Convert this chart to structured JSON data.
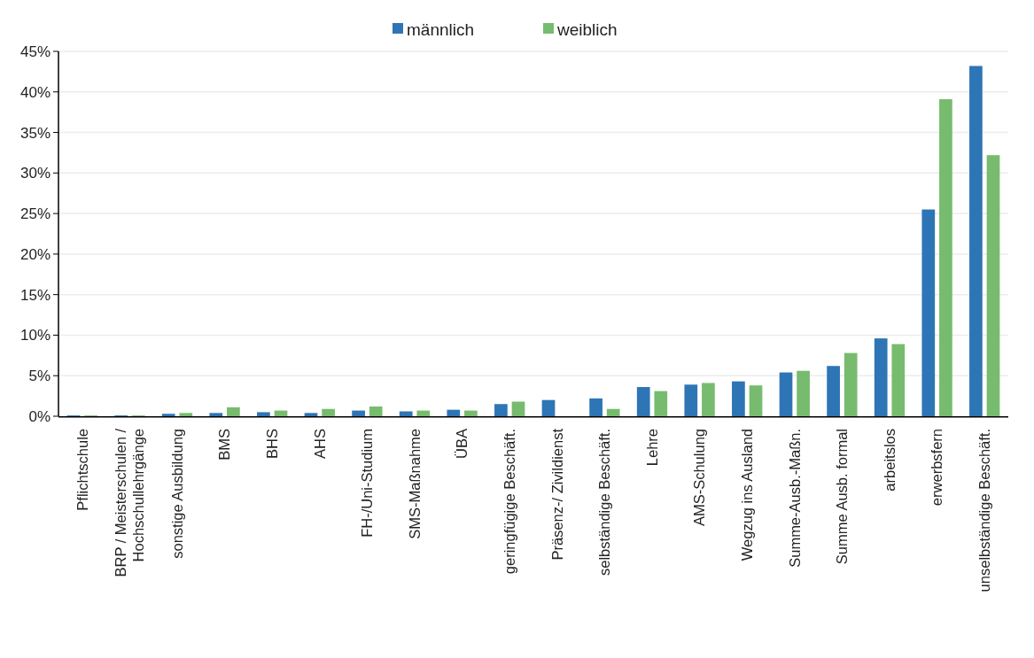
{
  "chart_data": {
    "type": "bar",
    "categories": [
      "Pflichtschule",
      "BRP / Meisterschulen /\nHochschullehrgänge",
      "sonstige Ausbildung",
      "BMS",
      "BHS",
      "AHS",
      "FH-/Uni-Studium",
      "SMS-Maßnahme",
      "ÜBA",
      "geringfügige Beschäft.",
      "Präsenz-/ Zivildienst",
      "selbständige Beschäft.",
      "Lehre",
      "AMS-Schulung",
      "Wegzug ins Ausland",
      "Summe-Ausb.-Maßn.",
      "Summe Ausb. formal",
      "arbeitslos",
      "erwerbsfern",
      "unselbständige Beschäft."
    ],
    "series": [
      {
        "name": "männlich",
        "color": "#2e75b6",
        "values": [
          0.1,
          0.1,
          0.3,
          0.4,
          0.5,
          0.4,
          0.7,
          0.6,
          0.8,
          1.5,
          2.0,
          2.2,
          3.6,
          3.9,
          4.3,
          5.4,
          6.2,
          9.6,
          25.5,
          43.2
        ]
      },
      {
        "name": "weiblich",
        "color": "#77bc6e",
        "values": [
          0.1,
          0.1,
          0.4,
          1.1,
          0.7,
          0.9,
          1.2,
          0.7,
          0.7,
          1.8,
          null,
          0.9,
          3.1,
          4.1,
          3.8,
          5.6,
          7.8,
          8.9,
          39.1,
          32.2
        ]
      }
    ],
    "ylim": [
      0,
      45
    ],
    "yticks": [
      {
        "value": 0,
        "label": "0%"
      },
      {
        "value": 5,
        "label": "5%"
      },
      {
        "value": 10,
        "label": "10%"
      },
      {
        "value": 15,
        "label": "15%"
      },
      {
        "value": 20,
        "label": "20%"
      },
      {
        "value": 25,
        "label": "25%"
      },
      {
        "value": 30,
        "label": "30%"
      },
      {
        "value": 35,
        "label": "35%"
      },
      {
        "value": 40,
        "label": "40%"
      },
      {
        "value": 45,
        "label": "45%"
      }
    ],
    "grid": "y",
    "legend": "top"
  }
}
